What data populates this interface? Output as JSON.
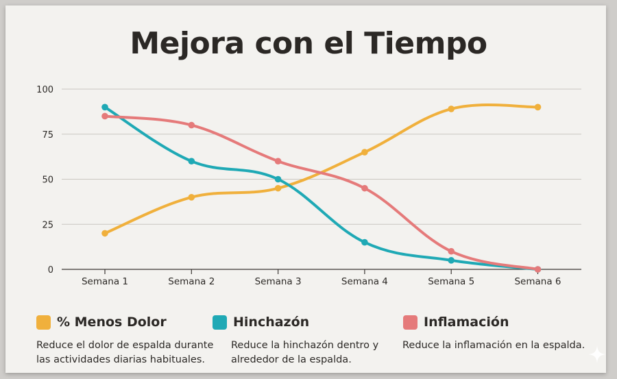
{
  "chart_data": {
    "type": "line",
    "title": "Mejora con el Tiempo",
    "xlabel": "",
    "ylabel": "",
    "categories": [
      "Semana 1",
      "Semana 2",
      "Semana 3",
      "Semana 4",
      "Semana 5",
      "Semana 6"
    ],
    "ylim": [
      0,
      100
    ],
    "yticks": [
      0,
      25,
      50,
      75,
      100
    ],
    "grid": true,
    "legend_position": "bottom",
    "series": [
      {
        "name": "% Menos Dolor",
        "color": "#f0b03c",
        "values": [
          20,
          40,
          45,
          65,
          89,
          90
        ],
        "description": "Reduce el dolor de espalda durante las actividades diarias habituales."
      },
      {
        "name": "Hinchazón",
        "color": "#1fa9b5",
        "values": [
          90,
          60,
          50,
          15,
          5,
          0
        ],
        "description": "Reduce la hinchazón dentro y alrededor de la espalda."
      },
      {
        "name": "Inflamación",
        "color": "#e57a7a",
        "values": [
          85,
          80,
          60,
          45,
          10,
          0
        ],
        "description": "Reduce la inflamación en la espalda."
      }
    ]
  }
}
